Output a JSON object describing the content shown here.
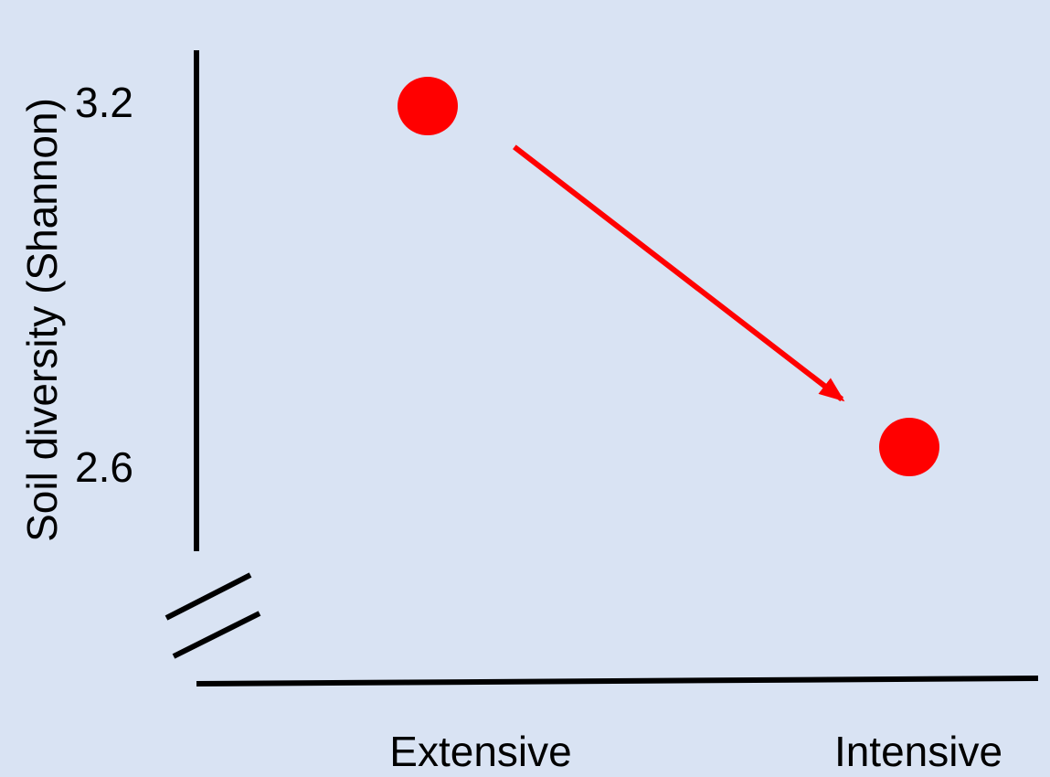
{
  "chart_data": {
    "type": "scatter",
    "title": "",
    "xlabel": "",
    "ylabel": "Soil diversity (Shannon)",
    "categories": [
      "Extensive",
      "Intensive"
    ],
    "y_ticks": [
      "3.2",
      "2.6"
    ],
    "values": [
      3.2,
      2.6
    ],
    "ylim": [
      2.6,
      3.2
    ],
    "axis_break": true,
    "trend_arrow": true,
    "grid": false,
    "legend": "none",
    "colors": {
      "points": "#ff0000",
      "arrow": "#ff0000",
      "axis": "#000000",
      "background": "#d9e3f3"
    }
  }
}
